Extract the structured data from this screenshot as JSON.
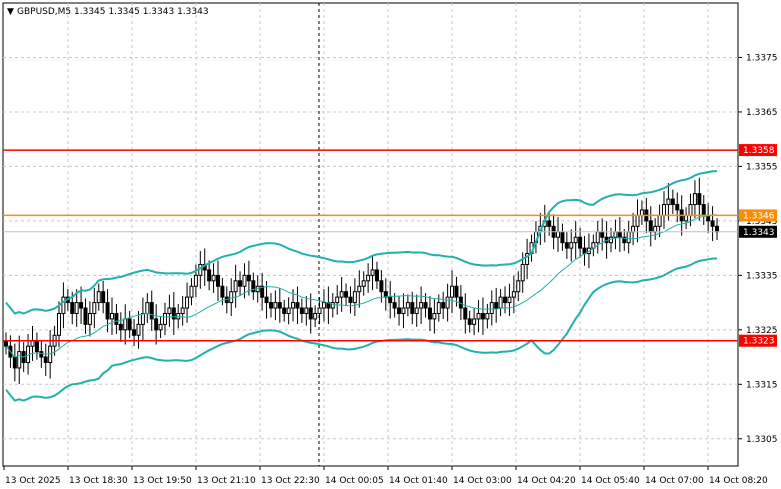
{
  "header": {
    "symbol_label": "GBPUSD,M5  1.3345 1.3345 1.3343 1.3343",
    "menu_glyph": "▼"
  },
  "colors": {
    "candle": "#000000",
    "bollinger": "#20b2aa",
    "level_red": "#ff0000",
    "level_orange": "#ff8c00",
    "price_line": "#c0c0c0",
    "current_tag_bg": "#000000"
  },
  "chart_data": {
    "type": "candlestick",
    "symbol": "GBPUSD",
    "timeframe": "M5",
    "ohlc_header": {
      "open": 1.3345,
      "high": 1.3345,
      "low": 1.3343,
      "close": 1.3343
    },
    "ylim": [
      1.33,
      1.3385
    ],
    "y_ticks": [
      "1.3375",
      "1.3365",
      "1.3355",
      "1.3345",
      "1.3335",
      "1.3325",
      "1.3315",
      "1.3305"
    ],
    "x_labels": [
      "13 Oct 2025",
      "13 Oct 18:30",
      "13 Oct 19:50",
      "13 Oct 21:10",
      "13 Oct 22:30",
      "14 Oct 00:05",
      "14 Oct 01:40",
      "14 Oct 03:00",
      "14 Oct 04:20",
      "14 Oct 05:40",
      "14 Oct 07:00",
      "14 Oct 08:20"
    ],
    "session_separator_label": "14 Oct 00:05",
    "levels": [
      {
        "price": "1.3358",
        "color": "#ff0000"
      },
      {
        "price": "1.3346",
        "color": "#ff8c00"
      },
      {
        "price": "1.3323",
        "color": "#ff0000"
      }
    ],
    "current_price": "1.3343",
    "close_series": [
      1.3322,
      1.332,
      1.3318,
      1.3321,
      1.3319,
      1.3322,
      1.3323,
      1.3321,
      1.332,
      1.3319,
      1.3322,
      1.3324,
      1.3328,
      1.3331,
      1.333,
      1.3328,
      1.333,
      1.3329,
      1.3326,
      1.3328,
      1.333,
      1.3332,
      1.333,
      1.3327,
      1.3328,
      1.3326,
      1.3325,
      1.3327,
      1.3325,
      1.3324,
      1.3326,
      1.3328,
      1.333,
      1.3327,
      1.3325,
      1.3326,
      1.3328,
      1.3329,
      1.3327,
      1.3328,
      1.3329,
      1.3331,
      1.3333,
      1.3335,
      1.3337,
      1.3336,
      1.3334,
      1.3335,
      1.3333,
      1.3331,
      1.333,
      1.3332,
      1.3334,
      1.3333,
      1.3335,
      1.3334,
      1.3332,
      1.3333,
      1.3331,
      1.333,
      1.3329,
      1.333,
      1.3329,
      1.3328,
      1.3329,
      1.333,
      1.3329,
      1.3328,
      1.3329,
      1.3327,
      1.3328,
      1.3329,
      1.333,
      1.3329,
      1.333,
      1.3331,
      1.3332,
      1.3331,
      1.333,
      1.3332,
      1.3333,
      1.3334,
      1.3335,
      1.3336,
      1.3334,
      1.3332,
      1.3331,
      1.333,
      1.3329,
      1.3328,
      1.3329,
      1.333,
      1.3328,
      1.3329,
      1.333,
      1.3329,
      1.3327,
      1.3328,
      1.333,
      1.3329,
      1.3331,
      1.3333,
      1.3331,
      1.3329,
      1.3327,
      1.3326,
      1.3327,
      1.3328,
      1.3327,
      1.3328,
      1.333,
      1.3329,
      1.3331,
      1.333,
      1.3331,
      1.3332,
      1.3334,
      1.3337,
      1.3339,
      1.3341,
      1.3343,
      1.3344,
      1.3345,
      1.3344,
      1.3342,
      1.3343,
      1.3341,
      1.334,
      1.3341,
      1.3342,
      1.334,
      1.3339,
      1.334,
      1.3341,
      1.3343,
      1.3342,
      1.3341,
      1.3342,
      1.3343,
      1.3342,
      1.3341,
      1.3343,
      1.3344,
      1.3346,
      1.3347,
      1.3345,
      1.3343,
      1.3344,
      1.3346,
      1.3348,
      1.3349,
      1.3348,
      1.3347,
      1.3345,
      1.3346,
      1.3348,
      1.335,
      1.3348,
      1.3346,
      1.3345,
      1.3344,
      1.3343
    ],
    "bollinger_bands": {
      "upper": "teal",
      "middle": "teal",
      "lower": "teal"
    }
  }
}
